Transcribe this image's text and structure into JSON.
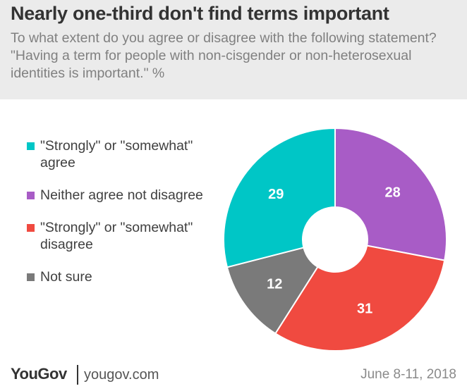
{
  "header": {
    "title": "Nearly one-third don't find terms important",
    "subtitle": "To what extent do you agree or disagree with the following statement? \"Having a term for people with non-cisgender or non-heterosexual identities is important.\" %"
  },
  "legend": {
    "items": [
      {
        "label": "\"Strongly\" or \"somewhat\" agree",
        "color": "#00c6c6"
      },
      {
        "label": "Neither agree not disagree",
        "color": "#a85cc6"
      },
      {
        "label": "\"Strongly\" or \"somewhat\" disagree",
        "color": "#f04a40"
      },
      {
        "label": "Not sure",
        "color": "#7a7a7a"
      }
    ]
  },
  "chart_data": {
    "type": "pie",
    "donut": true,
    "labels": [
      "\"Strongly\" or \"somewhat\" agree",
      "Neither agree not disagree",
      "\"Strongly\" or \"somewhat\" disagree",
      "Not sure"
    ],
    "values": [
      29,
      28,
      31,
      12
    ],
    "colors": [
      "#00c6c6",
      "#a85cc6",
      "#f04a40",
      "#7a7a7a"
    ],
    "data_labels": [
      "29",
      "28",
      "31",
      "12"
    ],
    "unit": "%",
    "start": "top, clockwise from 28"
  },
  "footer": {
    "brand": "YouGov",
    "url": "yougov.com",
    "date": "June 8-11, 2018"
  }
}
